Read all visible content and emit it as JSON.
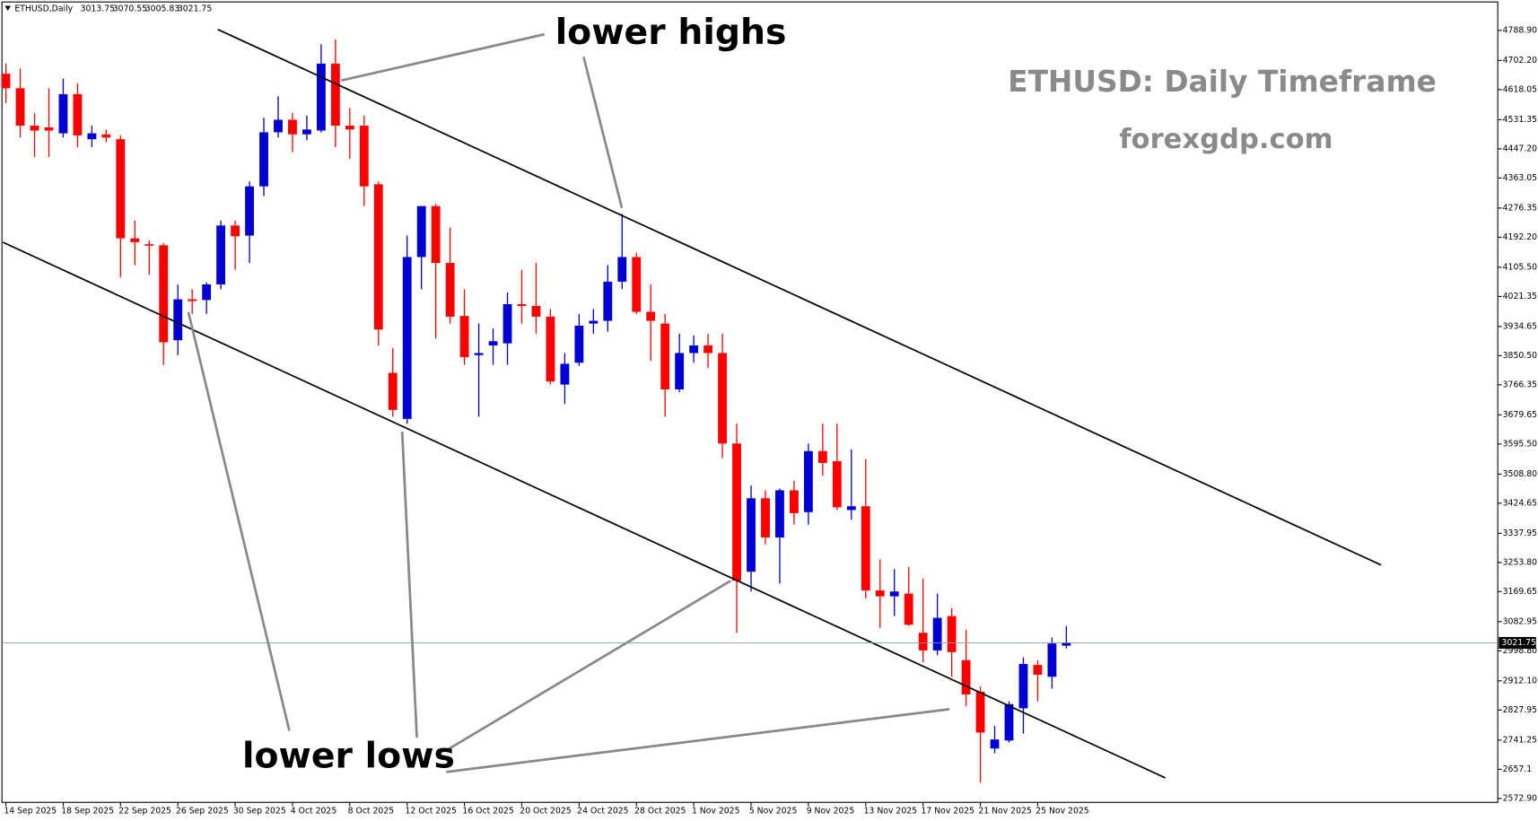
{
  "chart_data": {
    "type": "candlestick",
    "symbol": "ETHUSD,Daily",
    "title": "ETHUSD: Daily Timeframe",
    "subtitle": "forexgdp.com",
    "annotations": [
      "lower highs",
      "lower lows"
    ],
    "up_color": "#0000d4",
    "down_color": "#ff0000",
    "categories": [
      "14 Sep 2025",
      null,
      null,
      null,
      "18 Sep 2025",
      null,
      null,
      null,
      "22 Sep 2025",
      null,
      null,
      null,
      "26 Sep 2025",
      null,
      null,
      null,
      "30 Sep 2025",
      null,
      null,
      null,
      "4 Oct 2025",
      null,
      null,
      null,
      "8 Oct 2025",
      null,
      null,
      null,
      "12 Oct 2025",
      null,
      null,
      null,
      "16 Oct 2025",
      null,
      null,
      null,
      "20 Oct 2025",
      null,
      null,
      null,
      "24 Oct 2025",
      null,
      null,
      null,
      "28 Oct 2025",
      null,
      null,
      null,
      "1 Nov 2025",
      null,
      null,
      null,
      "5 Nov 2025",
      null,
      null,
      null,
      "9 Nov 2025",
      null,
      null,
      null,
      "13 Nov 2025",
      null,
      null,
      null,
      "17 Nov 2025",
      null,
      null,
      null,
      "21 Nov 2025",
      null,
      null,
      null,
      "25 Nov 2025",
      null,
      null
    ],
    "open": [
      4664,
      4622,
      4514,
      4509,
      4492,
      4605,
      4475,
      4489,
      4475,
      4189,
      4172,
      4169,
      3895,
      4013,
      4011,
      4056,
      4226,
      4197,
      4339,
      4495,
      4531,
      4489,
      4500,
      4693,
      4514,
      4514,
      4345,
      3801,
      3668,
      4135,
      4282,
      4118,
      3965,
      3852,
      3880,
      3886,
      3999,
      3994,
      3963,
      3767,
      3830,
      3943,
      3951,
      4064,
      4135,
      3977,
      3943,
      3753,
      3858,
      3880,
      3858,
      3597,
      3227,
      3439,
      3326,
      3462,
      3399,
      3575,
      3546,
      3405,
      3416,
      3173,
      3156,
      3164,
      3051,
      3000,
      3099,
      2972,
      2881,
      2717,
      2740,
      2833,
      2958,
      2924,
      3013.75
    ],
    "high": [
      4693,
      4679,
      4551,
      4622,
      4650,
      4636,
      4514,
      4503,
      4486,
      4240,
      4183,
      4175,
      4056,
      4042,
      4062,
      4240,
      4240,
      4353,
      4537,
      4599,
      4551,
      4543,
      4749,
      4763,
      4565,
      4543,
      4353,
      3872,
      4197,
      4282,
      4288,
      4220,
      4042,
      3943,
      3929,
      4033,
      4098,
      4118,
      3985,
      3858,
      3971,
      3985,
      4112,
      4260,
      4147,
      4056,
      3971,
      3914,
      3909,
      3914,
      3914,
      3654,
      3476,
      3462,
      3467,
      3490,
      3597,
      3654,
      3654,
      3580,
      3552,
      3263,
      3235,
      3241,
      3207,
      3164,
      3122,
      3060,
      2896,
      2782,
      2853,
      2980,
      2972,
      3037,
      3070.55
    ],
    "low": [
      4579,
      4480,
      4424,
      4424,
      4480,
      4452,
      4452,
      4466,
      4076,
      4112,
      4084,
      3824,
      3852,
      3971,
      3971,
      4042,
      4098,
      4118,
      4311,
      4480,
      4438,
      4472,
      4495,
      4452,
      4418,
      4282,
      3880,
      3674,
      3654,
      4042,
      3900,
      3943,
      3824,
      3674,
      3824,
      3824,
      3943,
      3914,
      3767,
      3711,
      3821,
      3914,
      3920,
      4042,
      3971,
      3835,
      3674,
      3745,
      3830,
      3815,
      3555,
      3051,
      3170,
      3306,
      3193,
      3363,
      3363,
      3504,
      3405,
      3377,
      3150,
      3065,
      3099,
      3071,
      2966,
      2986,
      2924,
      2839,
      2618,
      2703,
      2734,
      2760,
      2853,
      2890,
      3005.83
    ],
    "close": [
      4622,
      4514,
      4500,
      4500,
      4605,
      4486,
      4492,
      4480,
      4189,
      4178,
      4169,
      3889,
      4013,
      4008,
      4056,
      4226,
      4195,
      4339,
      4495,
      4531,
      4489,
      4503,
      4693,
      4514,
      4503,
      4339,
      3926,
      3694,
      4135,
      4282,
      4118,
      3963,
      3846,
      3858,
      3892,
      3999,
      3994,
      3963,
      3776,
      3827,
      3937,
      3951,
      4064,
      4135,
      3977,
      3951,
      3753,
      3858,
      3880,
      3858,
      3597,
      3201,
      3439,
      3326,
      3462,
      3396,
      3575,
      3541,
      3413,
      3416,
      3173,
      3156,
      3170,
      3074,
      3000,
      3094,
      2995,
      2873,
      2763,
      2743,
      2845,
      2961,
      2930,
      3020,
      3021.75
    ],
    "ylim": [
      2561.6,
      4862.5
    ],
    "yticks": [
      {
        "value": 2572.9,
        "label": "2572.90"
      },
      2657.1,
      2741.25,
      2827.95,
      {
        "value": 2912.1,
        "label": "2912.10"
      },
      {
        "value": 2998.8,
        "label": "2998.80"
      },
      3082.95,
      3169.65,
      {
        "value": 3253.8,
        "label": "3253.80"
      },
      3337.95,
      3424.65,
      {
        "value": 3508.8,
        "label": "3508.80"
      },
      {
        "value": 3595.5,
        "label": "3595.50"
      },
      3679.65,
      3766.35,
      {
        "value": 3850.5,
        "label": "3850.50"
      },
      3934.65,
      4021.35,
      {
        "value": 4105.5,
        "label": "4105.50"
      },
      {
        "value": 4192.2,
        "label": "4192.20"
      },
      4276.35,
      4363.05,
      {
        "value": 4447.2,
        "label": "4447.20"
      },
      4531.35,
      4618.05,
      {
        "value": 4702.2,
        "label": "4702.20"
      },
      {
        "value": 4788.9,
        "label": "4788.90"
      }
    ]
  }
}
